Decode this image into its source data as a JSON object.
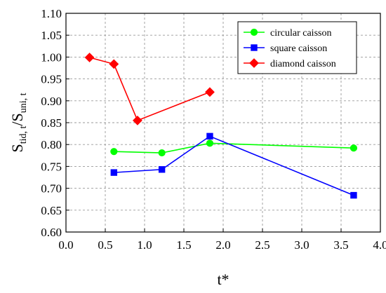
{
  "chart_data": {
    "type": "line",
    "xlabel": "t*",
    "ylabel": {
      "main1": "S",
      "sub1": "tid, t",
      "main2": "/S",
      "sub2": "uni, t"
    },
    "xlim": [
      0.0,
      4.0
    ],
    "ylim": [
      0.6,
      1.1
    ],
    "xticks": [
      "0.0",
      "0.5",
      "1.0",
      "1.5",
      "2.0",
      "2.5",
      "3.0",
      "3.5",
      "4.0"
    ],
    "yticks": [
      "0.60",
      "0.65",
      "0.70",
      "0.75",
      "0.80",
      "0.85",
      "0.90",
      "0.95",
      "1.00",
      "1.05",
      "1.10"
    ],
    "grid": true,
    "legend_position": "top-right",
    "series": [
      {
        "name": "circular caisson",
        "color": "#00ff00",
        "marker": "circle",
        "points": [
          [
            0.61,
            0.784
          ],
          [
            1.22,
            0.781
          ],
          [
            1.83,
            0.803
          ],
          [
            3.66,
            0.792
          ]
        ]
      },
      {
        "name": "square caisson",
        "color": "#0000ff",
        "marker": "square",
        "points": [
          [
            0.61,
            0.736
          ],
          [
            1.22,
            0.743
          ],
          [
            1.83,
            0.819
          ],
          [
            3.66,
            0.684
          ]
        ]
      },
      {
        "name": "diamond caisson",
        "color": "#ff0000",
        "marker": "diamond",
        "points": [
          [
            0.3,
            0.999
          ],
          [
            0.61,
            0.984
          ],
          [
            0.91,
            0.855
          ],
          [
            1.83,
            0.92
          ]
        ]
      }
    ]
  }
}
